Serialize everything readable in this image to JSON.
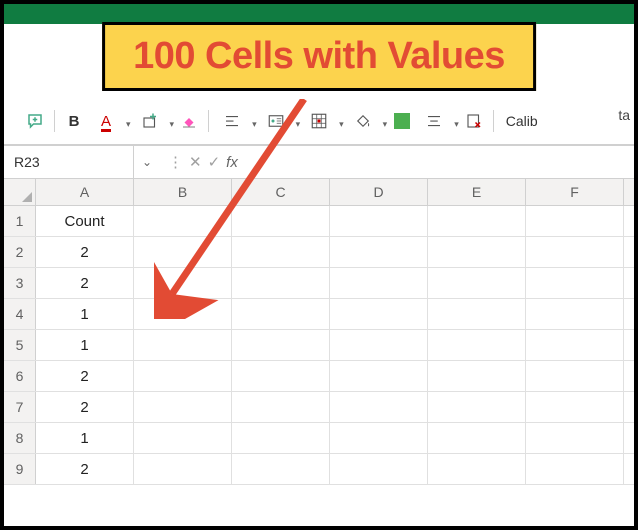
{
  "callout": {
    "text": "100 Cells with Values"
  },
  "toolbar": {
    "font_name": "Calib",
    "partial_label": "ta"
  },
  "name_box": {
    "value": "R23"
  },
  "formula_bar": {
    "fx_label": "fx",
    "value": ""
  },
  "columns": [
    "A",
    "B",
    "C",
    "D",
    "E",
    "F"
  ],
  "rows": [
    {
      "num": "1",
      "cells": [
        "Count",
        "",
        "",
        "",
        "",
        ""
      ]
    },
    {
      "num": "2",
      "cells": [
        "2",
        "",
        "",
        "",
        "",
        ""
      ]
    },
    {
      "num": "3",
      "cells": [
        "2",
        "",
        "",
        "",
        "",
        ""
      ]
    },
    {
      "num": "4",
      "cells": [
        "1",
        "",
        "",
        "",
        "",
        ""
      ]
    },
    {
      "num": "5",
      "cells": [
        "1",
        "",
        "",
        "",
        "",
        ""
      ]
    },
    {
      "num": "6",
      "cells": [
        "2",
        "",
        "",
        "",
        "",
        ""
      ]
    },
    {
      "num": "7",
      "cells": [
        "2",
        "",
        "",
        "",
        "",
        ""
      ]
    },
    {
      "num": "8",
      "cells": [
        "1",
        "",
        "",
        "",
        "",
        ""
      ]
    },
    {
      "num": "9",
      "cells": [
        "2",
        "",
        "",
        "",
        "",
        ""
      ]
    }
  ],
  "colors": {
    "callout_bg": "#fcd34d",
    "callout_text": "#e24b34",
    "arrow": "#e24b34",
    "green_bar": "#107c41"
  }
}
